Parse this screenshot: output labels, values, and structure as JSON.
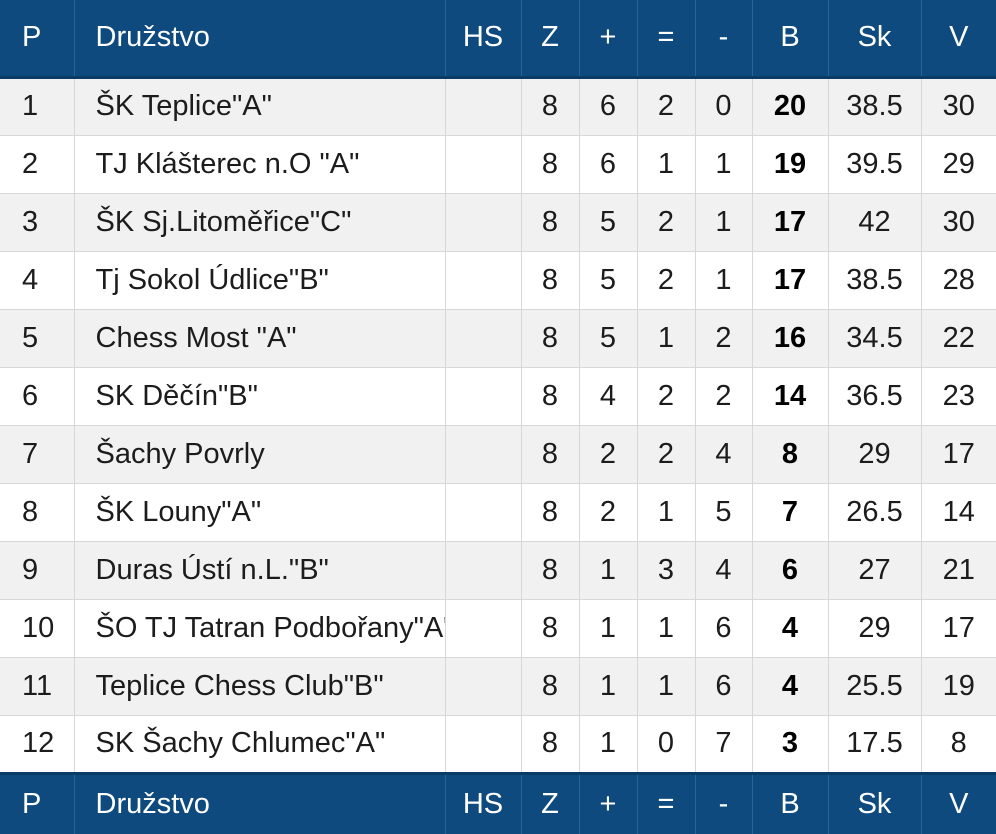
{
  "header": {
    "pos": "P",
    "team": "Družstvo",
    "hs": "HS",
    "z": "Z",
    "plus": "+",
    "eq": "=",
    "minus": "-",
    "b": "B",
    "sk": "Sk",
    "v": "V"
  },
  "rows": [
    {
      "pos": "1",
      "team": "ŠK Teplice\"A\"",
      "hs": "",
      "z": "8",
      "plus": "6",
      "eq": "2",
      "minus": "0",
      "b": "20",
      "sk": "38.5",
      "v": "30"
    },
    {
      "pos": "2",
      "team": "TJ Klášterec n.O \"A\"",
      "hs": "",
      "z": "8",
      "plus": "6",
      "eq": "1",
      "minus": "1",
      "b": "19",
      "sk": "39.5",
      "v": "29"
    },
    {
      "pos": "3",
      "team": "ŠK Sj.Litoměřice\"C\"",
      "hs": "",
      "z": "8",
      "plus": "5",
      "eq": "2",
      "minus": "1",
      "b": "17",
      "sk": "42",
      "v": "30"
    },
    {
      "pos": "4",
      "team": "Tj Sokol Údlice\"B\"",
      "hs": "",
      "z": "8",
      "plus": "5",
      "eq": "2",
      "minus": "1",
      "b": "17",
      "sk": "38.5",
      "v": "28"
    },
    {
      "pos": "5",
      "team": "Chess Most \"A\"",
      "hs": "",
      "z": "8",
      "plus": "5",
      "eq": "1",
      "minus": "2",
      "b": "16",
      "sk": "34.5",
      "v": "22"
    },
    {
      "pos": "6",
      "team": "SK Děčín\"B\"",
      "hs": "",
      "z": "8",
      "plus": "4",
      "eq": "2",
      "minus": "2",
      "b": "14",
      "sk": "36.5",
      "v": "23"
    },
    {
      "pos": "7",
      "team": "Šachy Povrly",
      "hs": "",
      "z": "8",
      "plus": "2",
      "eq": "2",
      "minus": "4",
      "b": "8",
      "sk": "29",
      "v": "17"
    },
    {
      "pos": "8",
      "team": "ŠK Louny\"A\"",
      "hs": "",
      "z": "8",
      "plus": "2",
      "eq": "1",
      "minus": "5",
      "b": "7",
      "sk": "26.5",
      "v": "14"
    },
    {
      "pos": "9",
      "team": "Duras Ústí n.L.\"B\"",
      "hs": "",
      "z": "8",
      "plus": "1",
      "eq": "3",
      "minus": "4",
      "b": "6",
      "sk": "27",
      "v": "21"
    },
    {
      "pos": "10",
      "team": "ŠO TJ Tatran Podbořany\"A\"",
      "hs": "",
      "z": "8",
      "plus": "1",
      "eq": "1",
      "minus": "6",
      "b": "4",
      "sk": "29",
      "v": "17"
    },
    {
      "pos": "11",
      "team": "Teplice Chess Club\"B\"",
      "hs": "",
      "z": "8",
      "plus": "1",
      "eq": "1",
      "minus": "6",
      "b": "4",
      "sk": "25.5",
      "v": "19"
    },
    {
      "pos": "12",
      "team": "SK Šachy Chlumec\"A\"",
      "hs": "",
      "z": "8",
      "plus": "1",
      "eq": "0",
      "minus": "7",
      "b": "3",
      "sk": "17.5",
      "v": "8"
    }
  ],
  "colors": {
    "header_bg": "#0f4a7e",
    "header_text": "#ffffff",
    "row_odd": "#f1f1f1",
    "row_even": "#ffffff"
  }
}
